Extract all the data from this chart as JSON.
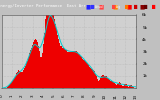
{
  "title": "Energy/Inverter Performance  East Array",
  "background_color": "#c0c0c0",
  "title_bg_color": "#000000",
  "plot_bg_color": "#d0d0d0",
  "bar_color": "#ee0000",
  "avg_line_color": "#00cccc",
  "ylim": [
    0,
    6000
  ],
  "yticks": [
    1000,
    2000,
    3000,
    4000,
    5000,
    6000
  ],
  "ytick_labels": [
    "1k",
    "2k",
    "3k",
    "4k",
    "5k",
    "6k"
  ],
  "grid_color": "#aaaaaa",
  "legend_colors": [
    "#0000cc",
    "#cc0000",
    "#cc0000",
    "#cc0000",
    "#cc0000",
    "#cc0000"
  ],
  "num_bars": 280,
  "title_fontsize": 3.5,
  "tick_fontsize": 3.0
}
